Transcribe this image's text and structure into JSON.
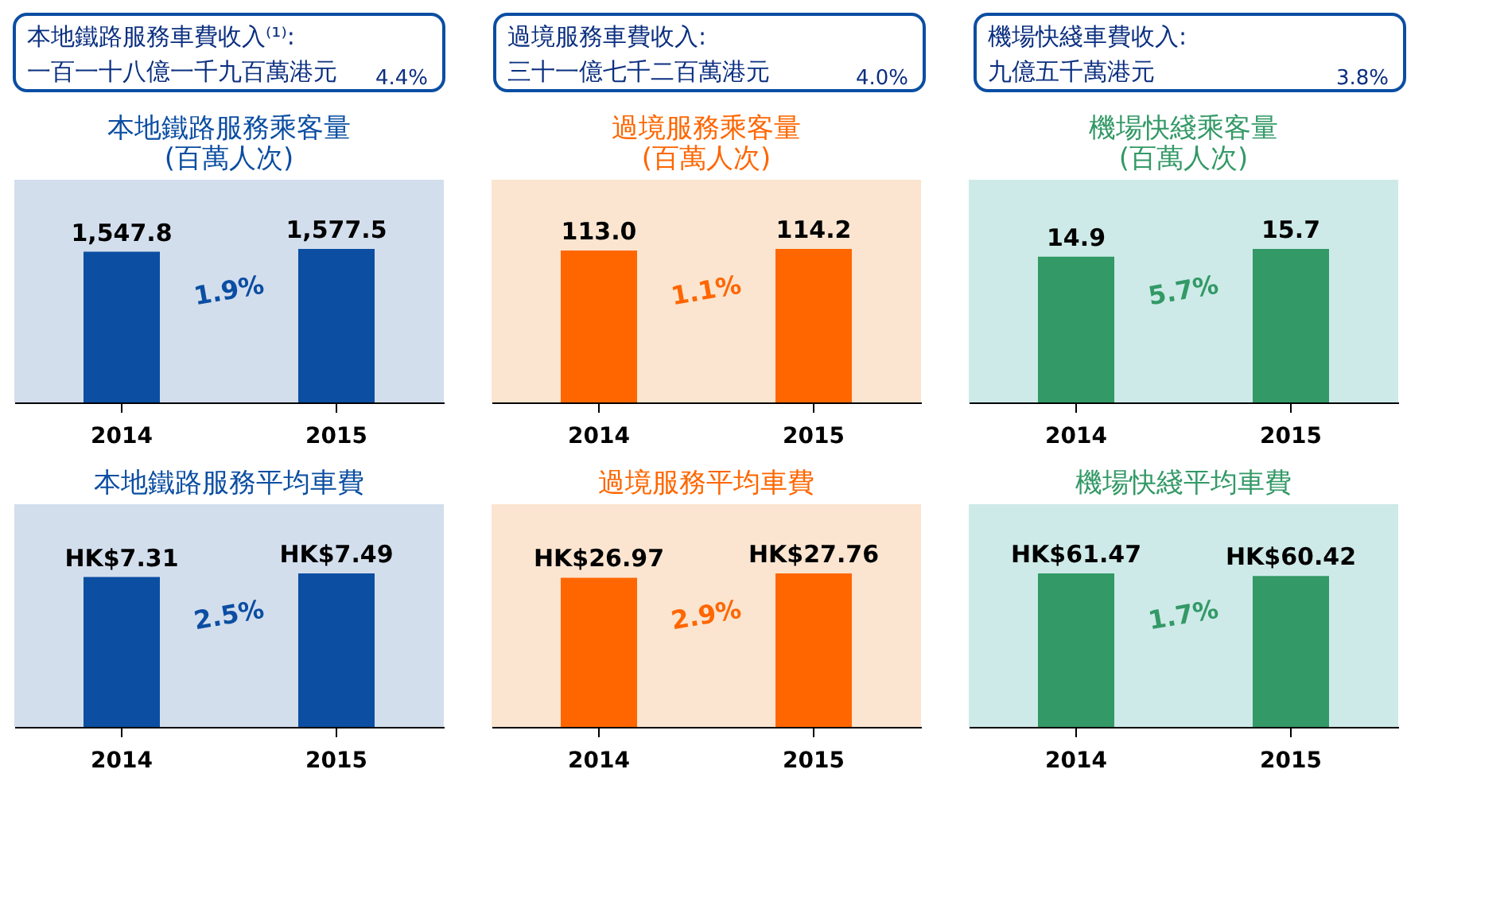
{
  "chart_data": [
    {
      "type": "other",
      "title": "本地鐵路服務車費收入⁽¹⁾:",
      "annotations": [
        "一百一十八億一千九百萬港元",
        "4.4%"
      ],
      "colors": [
        "#0b4ea2"
      ]
    },
    {
      "type": "other",
      "title": "過境服務車費收入:",
      "annotations": [
        "三十一億七千二百萬港元",
        "4.0%"
      ],
      "colors": [
        "#0b4ea2"
      ]
    },
    {
      "type": "other",
      "title": "機場快綫車費收入:",
      "annotations": [
        "九億五千萬港元",
        "3.8%"
      ],
      "colors": [
        "#0b4ea2"
      ]
    },
    {
      "type": "bar",
      "title": [
        "本地鐵路服務乘客量",
        "(百萬人次)"
      ],
      "categories": [
        "2014",
        "2015"
      ],
      "values": [
        1547.8,
        1577.5
      ],
      "value_labels": [
        "1,547.8",
        "1,577.5"
      ],
      "colors": [
        "#0b4ea2",
        "#0b4ea2"
      ],
      "annotations": [
        "1.9%"
      ]
    },
    {
      "type": "bar",
      "title": [
        "過境服務乘客量",
        "(百萬人次)"
      ],
      "categories": [
        "2014",
        "2015"
      ],
      "values": [
        113.0,
        114.2
      ],
      "value_labels": [
        "113.0",
        "114.2"
      ],
      "colors": [
        "#ff6600",
        "#ff6600"
      ],
      "annotations": [
        "1.1%"
      ]
    },
    {
      "type": "bar",
      "title": [
        "機場快綫乘客量",
        "(百萬人次)"
      ],
      "categories": [
        "2014",
        "2015"
      ],
      "values": [
        14.9,
        15.7
      ],
      "value_labels": [
        "14.9",
        "15.7"
      ],
      "colors": [
        "#339966",
        "#339966"
      ],
      "annotations": [
        "5.7%"
      ]
    },
    {
      "type": "bar",
      "title": "本地鐵路服務平均車費",
      "categories": [
        "2014",
        "2015"
      ],
      "values": [
        7.31,
        7.49
      ],
      "value_labels": [
        "HK$7.31",
        "HK$7.49"
      ],
      "colors": [
        "#0b4ea2",
        "#0b4ea2"
      ],
      "annotations": [
        "2.5%"
      ]
    },
    {
      "type": "bar",
      "title": "過境服務平均車費",
      "categories": [
        "2014",
        "2015"
      ],
      "values": [
        26.97,
        27.76
      ],
      "value_labels": [
        "HK$26.97",
        "HK$27.76"
      ],
      "colors": [
        "#ff6600",
        "#ff6600"
      ],
      "annotations": [
        "2.9%"
      ]
    },
    {
      "type": "bar",
      "title": "機場快綫平均車費",
      "categories": [
        "2014",
        "2015"
      ],
      "values": [
        61.47,
        60.42
      ],
      "value_labels": [
        "HK$61.47",
        "HK$60.42"
      ],
      "colors": [
        "#339966",
        "#339966"
      ],
      "annotations": [
        "1.7%"
      ]
    }
  ]
}
